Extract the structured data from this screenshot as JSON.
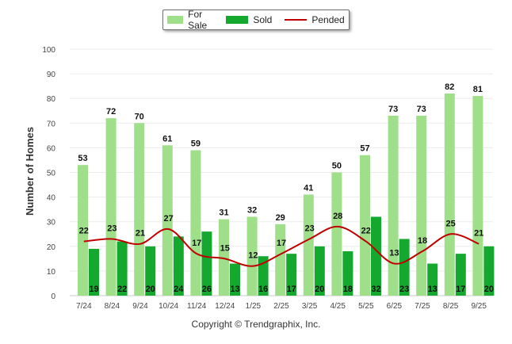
{
  "legend": {
    "for_sale": "For Sale",
    "sold": "Sold",
    "pended": "Pended"
  },
  "colors": {
    "for_sale": "#a0df8a",
    "sold": "#15a82e",
    "pended": "#c00000"
  },
  "credit": "Copyright © Trendgraphix, Inc.",
  "chart_data": {
    "type": "bar",
    "categories": [
      "7/24",
      "8/24",
      "9/24",
      "10/24",
      "11/24",
      "12/24",
      "1/25",
      "2/25",
      "3/25",
      "4/25",
      "5/25",
      "6/25",
      "7/25",
      "8/25",
      "9/25"
    ],
    "series": [
      {
        "name": "For Sale",
        "type": "bar",
        "values": [
          53,
          72,
          70,
          61,
          59,
          31,
          32,
          29,
          41,
          50,
          57,
          73,
          73,
          82,
          81
        ]
      },
      {
        "name": "Sold",
        "type": "bar",
        "values": [
          19,
          22,
          20,
          24,
          26,
          13,
          16,
          17,
          20,
          18,
          32,
          23,
          13,
          17,
          20
        ]
      },
      {
        "name": "Pended",
        "type": "line",
        "values": [
          22,
          23,
          21,
          27,
          17,
          15,
          12,
          17,
          23,
          28,
          22,
          13,
          18,
          25,
          21
        ]
      }
    ],
    "ylabel": "Number of Homes",
    "xlabel": "",
    "ylim": [
      0,
      100
    ],
    "yticks": [
      0,
      10,
      20,
      30,
      40,
      50,
      60,
      70,
      80,
      90,
      100
    ],
    "grid": true,
    "legend_position": "top-center"
  }
}
